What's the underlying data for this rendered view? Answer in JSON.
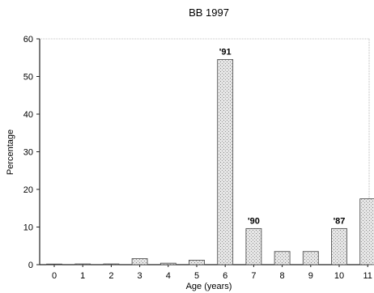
{
  "chart_data": {
    "type": "bar",
    "title": "BB 1997",
    "xlabel": "Age  (years)",
    "ylabel": "Percentage",
    "ylim": [
      0,
      60
    ],
    "yticks": [
      0,
      10,
      20,
      30,
      40,
      50,
      60
    ],
    "categories": [
      "0",
      "1",
      "2",
      "3",
      "4",
      "5",
      "6",
      "7",
      "8",
      "9",
      "10",
      "11"
    ],
    "values": [
      0.1,
      0.2,
      0.2,
      1.6,
      0.4,
      1.2,
      54.5,
      9.6,
      3.5,
      3.5,
      9.6,
      17.5
    ],
    "annotations": [
      {
        "category": "6",
        "text": "'91"
      },
      {
        "category": "7",
        "text": "'90"
      },
      {
        "category": "10",
        "text": "'87"
      }
    ],
    "grid": false,
    "legend": "none",
    "colors": {
      "bar_fill": "#d9d9d9",
      "bar_stroke": "#444444",
      "axis": "#222222"
    }
  }
}
